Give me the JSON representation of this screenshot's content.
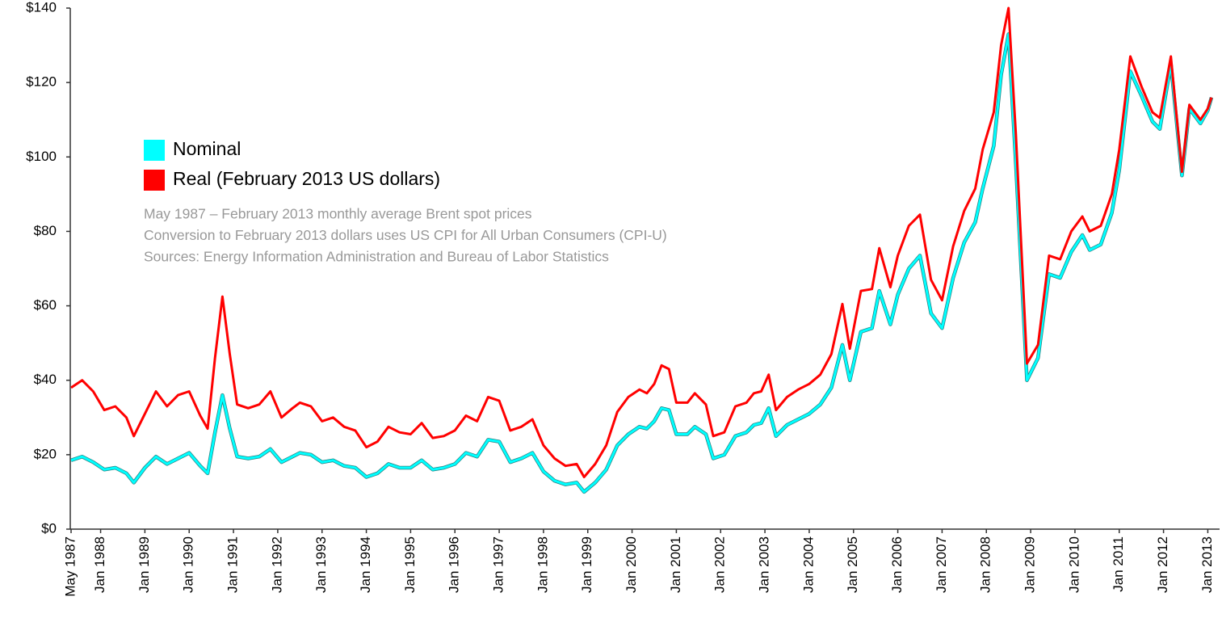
{
  "chart_data": {
    "type": "line",
    "notes": [
      "May 1987 – February 2013 monthly average Brent spot prices",
      "Conversion to February 2013 dollars uses US CPI for All Urban Consumers (CPI-U)",
      "Sources: Energy Information Administration and Bureau of Labor Statistics"
    ],
    "legend": "upper left",
    "x": [
      "1987-05",
      "1987-08",
      "1987-11",
      "1988-02",
      "1988-05",
      "1988-08",
      "1988-10",
      "1989-01",
      "1989-04",
      "1989-07",
      "1989-10",
      "1990-01",
      "1990-04",
      "1990-06",
      "1990-08",
      "1990-10",
      "1990-12",
      "1991-02",
      "1991-05",
      "1991-08",
      "1991-11",
      "1992-02",
      "1992-05",
      "1992-07",
      "1992-10",
      "1993-01",
      "1993-04",
      "1993-07",
      "1993-10",
      "1994-01",
      "1994-04",
      "1994-07",
      "1994-10",
      "1995-01",
      "1995-04",
      "1995-07",
      "1995-10",
      "1996-01",
      "1996-04",
      "1996-07",
      "1996-10",
      "1997-01",
      "1997-04",
      "1997-07",
      "1997-10",
      "1998-01",
      "1998-04",
      "1998-07",
      "1998-10",
      "1998-12",
      "1999-03",
      "1999-06",
      "1999-09",
      "1999-12",
      "2000-03",
      "2000-05",
      "2000-07",
      "2000-09",
      "2000-11",
      "2001-01",
      "2001-04",
      "2001-06",
      "2001-09",
      "2001-11",
      "2002-02",
      "2002-05",
      "2002-08",
      "2002-10",
      "2002-12",
      "2003-02",
      "2003-04",
      "2003-07",
      "2003-10",
      "2004-01",
      "2004-04",
      "2004-07",
      "2004-10",
      "2004-12",
      "2005-03",
      "2005-06",
      "2005-08",
      "2005-11",
      "2006-01",
      "2006-04",
      "2006-07",
      "2006-10",
      "2007-01",
      "2007-04",
      "2007-07",
      "2007-10",
      "2007-12",
      "2008-03",
      "2008-05",
      "2008-07",
      "2008-09",
      "2008-12",
      "2009-03",
      "2009-06",
      "2009-09",
      "2009-12",
      "2010-03",
      "2010-05",
      "2010-08",
      "2010-11",
      "2011-01",
      "2011-04",
      "2011-07",
      "2011-10",
      "2011-12",
      "2012-03",
      "2012-06",
      "2012-08",
      "2012-11",
      "2013-01",
      "2013-02"
    ],
    "series": [
      {
        "name": "Nominal",
        "color": "#00ffff",
        "values": [
          18.5,
          19.5,
          18,
          16,
          16.5,
          15,
          12.5,
          16.5,
          19.5,
          17.5,
          19,
          20.5,
          17,
          15,
          26,
          36,
          27,
          19.5,
          19,
          19.5,
          21.5,
          18,
          19.5,
          20.5,
          20,
          18,
          18.5,
          17,
          16.5,
          14,
          15,
          17.5,
          16.5,
          16.5,
          18.5,
          16,
          16.5,
          17.5,
          20.5,
          19.5,
          24,
          23.5,
          18,
          19,
          20.5,
          15.5,
          13,
          12,
          12.5,
          10,
          12.5,
          16,
          22.5,
          25.5,
          27.5,
          27,
          29,
          32.5,
          32,
          25.5,
          25.5,
          27.5,
          25.5,
          19,
          20,
          25,
          26,
          28,
          28.5,
          32.5,
          25,
          28,
          29.5,
          31,
          33.5,
          38,
          49.5,
          40,
          53,
          54,
          64,
          55,
          63,
          70,
          73.5,
          58,
          54,
          67.5,
          77,
          82.5,
          91.5,
          103,
          122,
          133,
          98,
          40,
          46,
          68.5,
          67.5,
          74.5,
          79,
          75,
          76.5,
          85,
          96.5,
          123,
          116.5,
          109.5,
          107.5,
          125,
          95,
          113,
          109,
          112.5,
          116
        ]
      },
      {
        "name": "Real (February 2013 US dollars)",
        "color": "#ff0000",
        "values": [
          38,
          40,
          37,
          32,
          33,
          30,
          25,
          31,
          37,
          33,
          36,
          37,
          30.5,
          27,
          46,
          62.5,
          47,
          33.5,
          32.5,
          33.5,
          37,
          30,
          32.5,
          34,
          33,
          29,
          30,
          27.5,
          26.5,
          22,
          23.5,
          27.5,
          26,
          25.5,
          28.5,
          24.5,
          25,
          26.5,
          30.5,
          29,
          35.5,
          34.5,
          26.5,
          27.5,
          29.5,
          22.5,
          19,
          17,
          17.5,
          14,
          17.5,
          22.5,
          31.5,
          35.5,
          37.5,
          36.5,
          39,
          44,
          43,
          34,
          34,
          36.5,
          33.5,
          25,
          26,
          33,
          34,
          36.5,
          37,
          41.5,
          32,
          35.5,
          37.5,
          39,
          41.5,
          47,
          60.5,
          48.5,
          64,
          64.5,
          75.5,
          65,
          73.5,
          81.5,
          84.5,
          67,
          61.5,
          76,
          85.5,
          91.5,
          102,
          112,
          130,
          140,
          106,
          44.5,
          49.5,
          73.5,
          72.5,
          80,
          84,
          80,
          81.5,
          90,
          102,
          127,
          119,
          112,
          110.5,
          127,
          96,
          114,
          110,
          113,
          116
        ]
      }
    ],
    "xlim": [
      "1987-05",
      "2013-02"
    ],
    "xticks": [
      {
        "value": "1987-05",
        "label": "May 1987"
      },
      {
        "value": "1988-01",
        "label": "Jan 1988"
      },
      {
        "value": "1989-01",
        "label": "Jan 1989"
      },
      {
        "value": "1990-01",
        "label": "Jan 1990"
      },
      {
        "value": "1991-01",
        "label": "Jan 1991"
      },
      {
        "value": "1992-01",
        "label": "Jan 1992"
      },
      {
        "value": "1993-01",
        "label": "Jan 1993"
      },
      {
        "value": "1994-01",
        "label": "Jan 1994"
      },
      {
        "value": "1995-01",
        "label": "Jan 1995"
      },
      {
        "value": "1996-01",
        "label": "Jan 1996"
      },
      {
        "value": "1997-01",
        "label": "Jan 1997"
      },
      {
        "value": "1998-01",
        "label": "Jan 1998"
      },
      {
        "value": "1999-01",
        "label": "Jan 1999"
      },
      {
        "value": "2000-01",
        "label": "Jan 2000"
      },
      {
        "value": "2001-01",
        "label": "Jan 2001"
      },
      {
        "value": "2002-01",
        "label": "Jan 2002"
      },
      {
        "value": "2003-01",
        "label": "Jan 2003"
      },
      {
        "value": "2004-01",
        "label": "Jan 2004"
      },
      {
        "value": "2005-01",
        "label": "Jan 2005"
      },
      {
        "value": "2006-01",
        "label": "Jan 2006"
      },
      {
        "value": "2007-01",
        "label": "Jan 2007"
      },
      {
        "value": "2008-01",
        "label": "Jan 2008"
      },
      {
        "value": "2009-01",
        "label": "Jan 2009"
      },
      {
        "value": "2010-01",
        "label": "Jan 2010"
      },
      {
        "value": "2011-01",
        "label": "Jan 2011"
      },
      {
        "value": "2012-01",
        "label": "Jan 2012"
      },
      {
        "value": "2013-01",
        "label": "Jan 2013"
      }
    ],
    "ylim": [
      0,
      140
    ],
    "yticks": [
      {
        "value": 0,
        "label": "$0"
      },
      {
        "value": 20,
        "label": "$20"
      },
      {
        "value": 40,
        "label": "$40"
      },
      {
        "value": 60,
        "label": "$60"
      },
      {
        "value": 80,
        "label": "$80"
      },
      {
        "value": 100,
        "label": "$100"
      },
      {
        "value": 120,
        "label": "$120"
      },
      {
        "value": 140,
        "label": "$140"
      }
    ]
  }
}
